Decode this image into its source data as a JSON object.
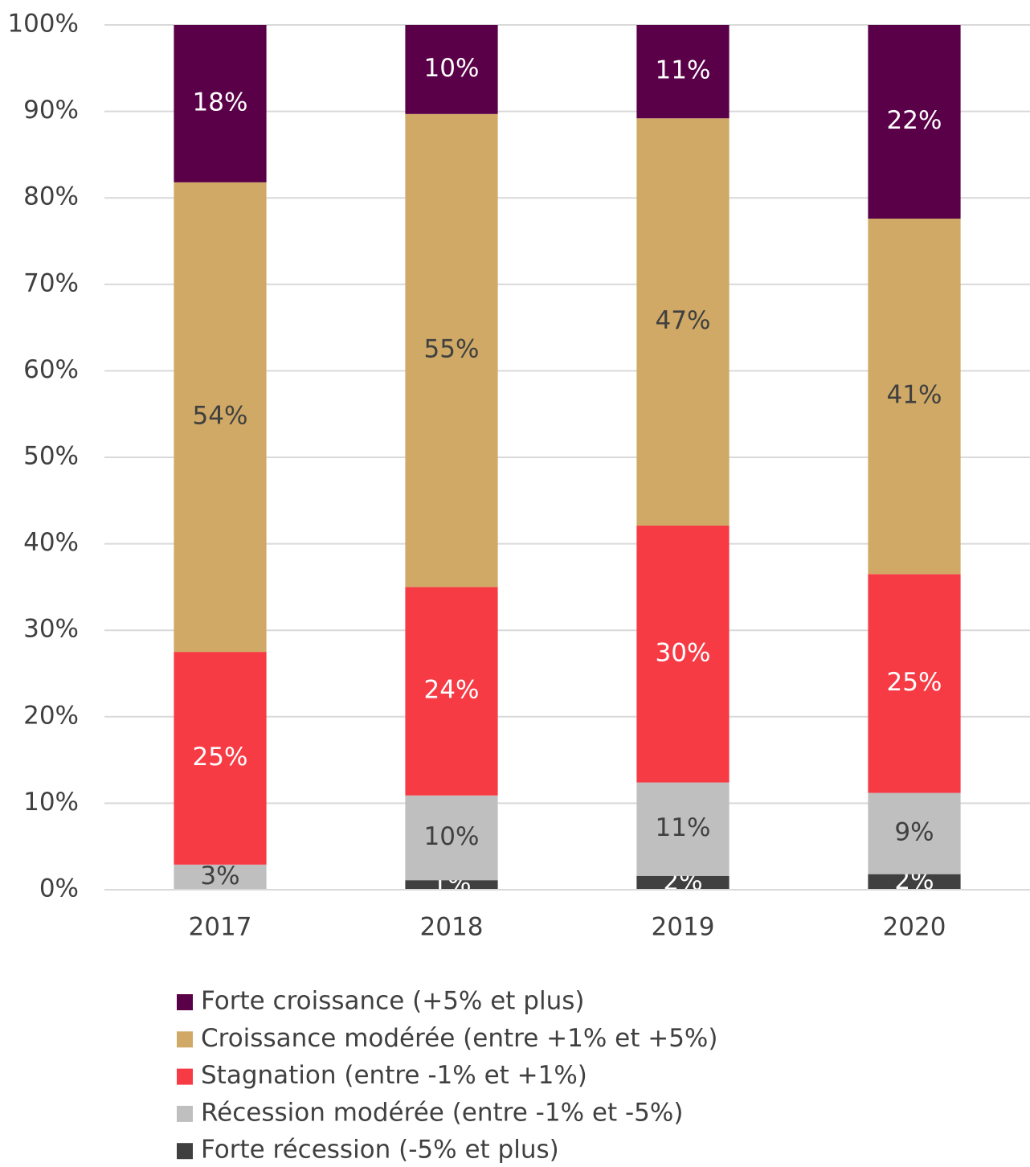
{
  "chart_data": {
    "type": "stacked_bar",
    "categories": [
      "2017",
      "2018",
      "2019",
      "2020"
    ],
    "series": [
      {
        "name": "Forte croissance (+5% et plus)",
        "color": "#5a0048",
        "label_color": "#ffffff",
        "values": [
          18.2,
          10.3,
          10.8,
          22.4
        ],
        "value_labels": [
          "18%",
          "10%",
          "11%",
          "22%"
        ]
      },
      {
        "name": "Croissance modérée (entre +1% et +5%)",
        "color": "#cfa965",
        "label_color": "#404040",
        "values": [
          54.3,
          54.7,
          47.1,
          41.1
        ],
        "value_labels": [
          "54%",
          "55%",
          "47%",
          "41%"
        ]
      },
      {
        "name": "Stagnation (entre -1% et +1%)",
        "color": "#f73b45",
        "label_color": "#ffffff",
        "values": [
          24.6,
          24.1,
          29.7,
          25.3
        ],
        "value_labels": [
          "25%",
          "24%",
          "30%",
          "25%"
        ]
      },
      {
        "name": "Récession modérée (entre -1% et -5%)",
        "color": "#bfbfbf",
        "label_color": "#404040",
        "values": [
          2.9,
          9.8,
          10.8,
          9.4
        ],
        "value_labels": [
          "3%",
          "10%",
          "11%",
          "9%"
        ]
      },
      {
        "name": "Forte récession (-5% et plus)",
        "color": "#404040",
        "label_color": "#ffffff",
        "values": [
          0,
          1.1,
          1.6,
          1.8
        ],
        "value_labels": [
          null,
          "1%",
          "2%",
          "2%"
        ]
      }
    ],
    "ylim": [
      0,
      100
    ],
    "yticks": [
      {
        "value": 0,
        "label": "0%"
      },
      {
        "value": 10,
        "label": "10%"
      },
      {
        "value": 20,
        "label": "20%"
      },
      {
        "value": 30,
        "label": "30%"
      },
      {
        "value": 40,
        "label": "40%"
      },
      {
        "value": 50,
        "label": "50%"
      },
      {
        "value": 60,
        "label": "60%"
      },
      {
        "value": 70,
        "label": "70%"
      },
      {
        "value": 80,
        "label": "80%"
      },
      {
        "value": 90,
        "label": "90%"
      },
      {
        "value": 100,
        "label": "100%"
      }
    ],
    "grid": true,
    "legend": "bottom"
  }
}
